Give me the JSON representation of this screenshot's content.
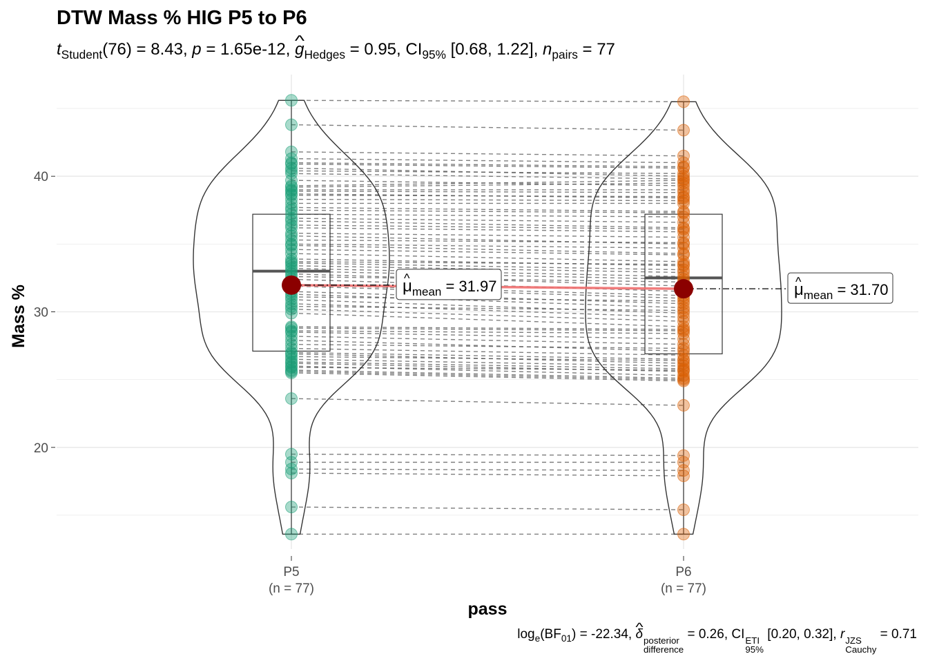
{
  "title": "DTW Mass % HIG P5 to P6",
  "subtitle": {
    "t_label": "t",
    "t_sub": "Student",
    "df": "(76)",
    "t_value": " = 8.43, ",
    "p_label": "p",
    "p_value": " = 1.65e-12, ",
    "g_label": "g",
    "g_sub": "Hedges",
    "g_value": " = 0.95, CI",
    "ci_sub": "95%",
    "ci_value": " [0.68, 1.22], ",
    "n_label": "n",
    "n_sub": "pairs",
    "n_value": " = 77"
  },
  "caption": {
    "log_text": "log",
    "log_sub": "e",
    "bf_text": "(BF",
    "bf_sub": "01",
    "bf_value": ") = -22.34, ",
    "delta_label": "δ",
    "delta_sup": "posterior",
    "delta_sub": "difference",
    "delta_value": " = 0.26, CI",
    "ci_sup": "ETI",
    "ci_sub": "95%",
    "ci_value": " [0.20, 0.32], ",
    "r_label": "r",
    "r_sup": "JZS",
    "r_sub": "Cauchy",
    "r_value": " = 0.71"
  },
  "chart_data": {
    "type": "violin-box-paired",
    "xlabel": "pass",
    "ylabel": "Mass %",
    "ylim": [
      12.5,
      47.5
    ],
    "yticks": [
      20,
      30,
      40
    ],
    "grid": true,
    "groups": [
      {
        "name": "P5",
        "n_label": "(n = 77)",
        "color": "#1B9E77",
        "mean": 31.97,
        "mean_label": "31.97",
        "box": {
          "q1": 27.1,
          "median": 33.0,
          "q3": 37.2
        },
        "values": [
          45.6,
          43.8,
          41.8,
          41.3,
          41.0,
          40.6,
          40.2,
          39.3,
          39.2,
          39.0,
          38.9,
          38.6,
          38.3,
          38.0,
          37.7,
          37.2,
          36.9,
          36.7,
          36.2,
          35.8,
          35.6,
          35.0,
          34.9,
          34.3,
          33.9,
          33.6,
          33.4,
          33.2,
          33.0,
          32.8,
          32.4,
          32.0,
          31.9,
          31.5,
          31.3,
          30.9,
          30.6,
          30.2,
          29.9,
          28.8,
          28.6,
          28.5,
          28.2,
          27.9,
          27.3,
          27.0,
          26.9,
          26.5,
          26.3,
          26.2,
          26.0,
          25.7,
          25.6,
          25.5,
          23.6,
          19.5,
          18.9,
          18.4,
          18.1,
          15.6,
          13.6,
          40.9,
          40.4,
          39.7,
          38.7,
          37.5,
          36.4,
          35.3,
          34.6,
          33.7,
          32.6,
          31.1,
          30.4,
          28.9,
          27.6,
          26.7,
          25.9
        ]
      },
      {
        "name": "P6",
        "n_label": "(n = 77)",
        "color": "#D95F02",
        "mean": 31.7,
        "mean_label": "31.70",
        "box": {
          "q1": 26.9,
          "median": 32.5,
          "q3": 37.2
        },
        "values": [
          45.5,
          43.4,
          41.5,
          41.0,
          40.7,
          40.0,
          39.8,
          39.7,
          39.5,
          39.0,
          38.8,
          38.5,
          38.2,
          38.0,
          37.4,
          37.0,
          36.6,
          36.2,
          35.9,
          35.5,
          35.0,
          34.7,
          34.3,
          33.7,
          33.4,
          33.1,
          32.9,
          32.6,
          32.4,
          31.9,
          31.5,
          31.2,
          31.0,
          30.6,
          30.3,
          29.9,
          29.6,
          29.3,
          28.9,
          28.6,
          28.4,
          28.0,
          27.6,
          27.1,
          26.8,
          26.5,
          26.2,
          26.0,
          25.8,
          25.6,
          25.3,
          25.1,
          25.0,
          24.9,
          23.1,
          19.4,
          18.9,
          18.3,
          17.9,
          15.4,
          13.6,
          40.6,
          40.2,
          39.3,
          38.4,
          37.3,
          36.1,
          35.1,
          34.2,
          33.5,
          32.2,
          30.8,
          30.1,
          28.7,
          27.3,
          26.4,
          25.7
        ]
      }
    ]
  }
}
